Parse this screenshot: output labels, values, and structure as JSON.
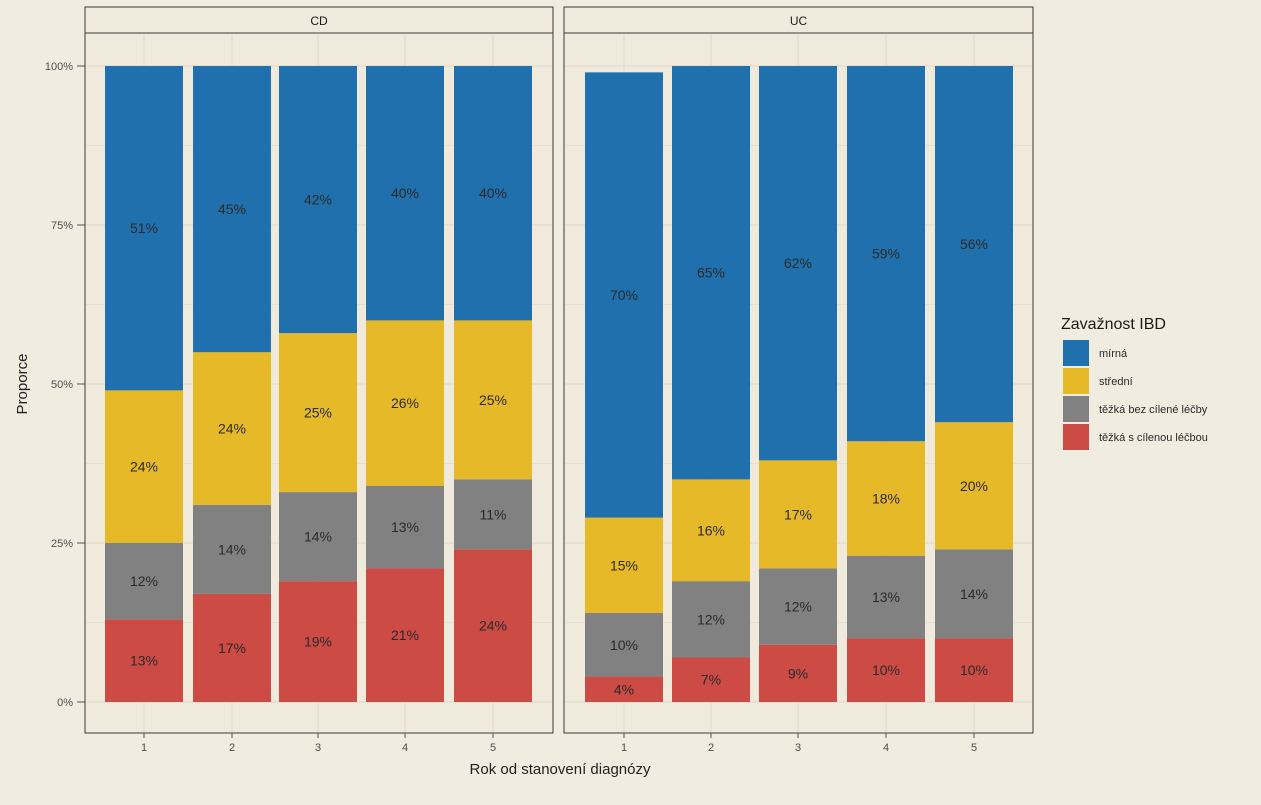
{
  "chart_data": {
    "type": "bar",
    "stacked": true,
    "y_axis": {
      "label": "Proporce",
      "ticks": [
        "0%",
        "25%",
        "50%",
        "75%",
        "100%"
      ],
      "tick_values": [
        0,
        25,
        50,
        75,
        100
      ],
      "ylim": [
        0,
        100
      ]
    },
    "x_axis": {
      "label": "Rok od stanovení diagnózy",
      "categories": [
        "1",
        "2",
        "3",
        "4",
        "5"
      ]
    },
    "legend": {
      "title": "Zavažnost IBD",
      "position": "right",
      "entries": [
        {
          "key": "mirna",
          "label": "mírná",
          "color": "#1f70ac"
        },
        {
          "key": "stredni",
          "label": "střední",
          "color": "#e6b928"
        },
        {
          "key": "tezka_bez",
          "label": "těžká bez cílené léčby",
          "color": "#818181"
        },
        {
          "key": "tezka_s",
          "label": "těžká s cílenou léčbou",
          "color": "#cc4b45"
        }
      ]
    },
    "grid": true,
    "panels": [
      {
        "title": "CD",
        "categories": [
          "1",
          "2",
          "3",
          "4",
          "5"
        ],
        "series": [
          {
            "key": "tezka_s",
            "values": [
              13,
              17,
              19,
              21,
              24
            ],
            "labels": [
              "13%",
              "17%",
              "19%",
              "21%",
              "24%"
            ]
          },
          {
            "key": "tezka_bez",
            "values": [
              12,
              14,
              14,
              13,
              11
            ],
            "labels": [
              "12%",
              "14%",
              "14%",
              "13%",
              "11%"
            ]
          },
          {
            "key": "stredni",
            "values": [
              24,
              24,
              25,
              26,
              25
            ],
            "labels": [
              "24%",
              "24%",
              "25%",
              "26%",
              "25%"
            ]
          },
          {
            "key": "mirna",
            "values": [
              51,
              45,
              42,
              40,
              40
            ],
            "labels": [
              "51%",
              "45%",
              "42%",
              "40%",
              "40%"
            ]
          }
        ]
      },
      {
        "title": "UC",
        "categories": [
          "1",
          "2",
          "3",
          "4",
          "5"
        ],
        "series": [
          {
            "key": "tezka_s",
            "values": [
              4,
              7,
              9,
              10,
              10
            ],
            "labels": [
              "4%",
              "7%",
              "9%",
              "10%",
              "10%"
            ]
          },
          {
            "key": "tezka_bez",
            "values": [
              10,
              12,
              12,
              13,
              14
            ],
            "labels": [
              "10%",
              "12%",
              "12%",
              "13%",
              "14%"
            ]
          },
          {
            "key": "stredni",
            "values": [
              15,
              16,
              17,
              18,
              20
            ],
            "labels": [
              "15%",
              "16%",
              "17%",
              "18%",
              "20%"
            ]
          },
          {
            "key": "mirna",
            "values": [
              70,
              65,
              62,
              59,
              56
            ],
            "labels": [
              "70%",
              "65%",
              "62%",
              "59%",
              "56%"
            ]
          }
        ]
      }
    ]
  }
}
